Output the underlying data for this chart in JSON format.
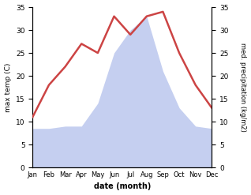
{
  "months": [
    "Jan",
    "Feb",
    "Mar",
    "Apr",
    "May",
    "Jun",
    "Jul",
    "Aug",
    "Sep",
    "Oct",
    "Nov",
    "Dec"
  ],
  "temperature": [
    11,
    18,
    22,
    27,
    25,
    33,
    29,
    33,
    34,
    25,
    18,
    13
  ],
  "precipitation": [
    8.5,
    8.5,
    9,
    9,
    14,
    25,
    30,
    33,
    21,
    13,
    9,
    8.5
  ],
  "temp_color": "#cc4444",
  "precip_color": "#c5cff0",
  "ylabel_left": "max temp (C)",
  "ylabel_right": "med. precipitation (kg/m2)",
  "xlabel": "date (month)",
  "ylim_left": [
    0,
    35
  ],
  "ylim_right": [
    0,
    35
  ],
  "yticks_left": [
    0,
    5,
    10,
    15,
    20,
    25,
    30,
    35
  ],
  "yticks_right": [
    0,
    5,
    10,
    15,
    20,
    25,
    30,
    35
  ],
  "background_color": "#ffffff",
  "line_width": 1.8
}
